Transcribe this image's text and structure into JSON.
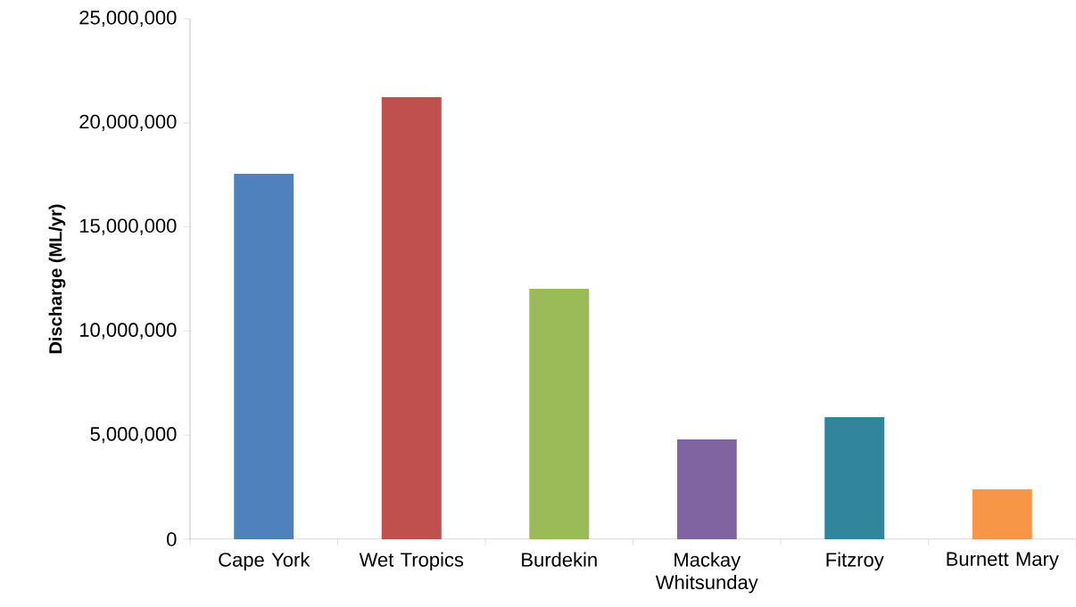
{
  "chart_data": {
    "type": "bar",
    "ylabel": "Discharge (ML/yr)",
    "categories": [
      "Cape York",
      "Wet Tropics",
      "Burdekin",
      "Mackay Whitsunday",
      "Fitzroy",
      "Burnett Mary"
    ],
    "values": [
      17550000,
      21230000,
      12030000,
      4790000,
      5860000,
      2400000
    ],
    "colors": [
      "#4f81bd",
      "#c0504d",
      "#9bbb59",
      "#8064a2",
      "#31859c",
      "#f79646"
    ],
    "ylim": [
      0,
      25000000
    ],
    "yticks": [
      0,
      {
        "value": 5000000,
        "label": "5,000,000"
      },
      {
        "value": 10000000,
        "label": "10,000,000"
      },
      {
        "value": 15000000,
        "label": "15,000,000"
      },
      {
        "value": 20000000,
        "label": "20,000,000"
      },
      {
        "value": 25000000,
        "label": "25,000,000"
      }
    ],
    "grid": false
  }
}
